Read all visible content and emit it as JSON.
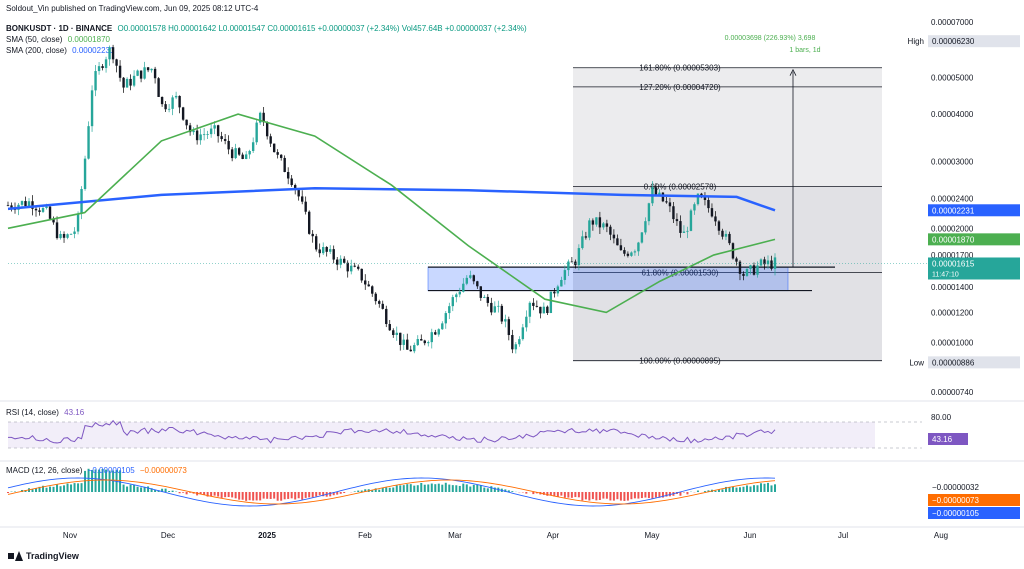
{
  "header": {
    "published": "Soldout_Vin published on TradingView.com, Jun 09, 2025 08:12 UTC-4"
  },
  "legend": {
    "symbol": "BONKUSDT · 1D · BINANCE",
    "ohlc": "O0.00001578 H0.00001642 L0.00001547 C0.00001615 +0.00000037 (+2.34%) Vol457.64B +0.00000037 (+2.34%)",
    "sma50_label": "SMA (50, close)",
    "sma50_value": "0.00001870",
    "sma200_label": "SMA (200, close)",
    "sma200_value": "0.00002231",
    "rsi_label": "RSI (14, close)",
    "rsi_value": "43.16",
    "macd_label": "MACD (12, 26, close)",
    "macd_v1": "−0.00000105",
    "macd_v2": "−0.00000073"
  },
  "footer": {
    "brand": "TradingView"
  },
  "colors": {
    "up": "#26a69a",
    "down": "#000000",
    "sma50": "#4caf50",
    "sma200": "#2962ff",
    "rsi": "#7e57c2",
    "macd": "#2962ff",
    "signal": "#ff6d00",
    "zone": "#2962ff"
  },
  "chart_data": {
    "type": "candlestick",
    "x_labels": [
      "Nov",
      "Dec",
      "2025",
      "Feb",
      "Mar",
      "Apr",
      "May",
      "Jun",
      "Jul",
      "Aug"
    ],
    "y_scale": "log",
    "y_ticks": [
      "0.00007000",
      "0.00005000",
      "0.00004000",
      "0.00003000",
      "0.00002400",
      "0.00002000",
      "0.00001700",
      "0.00001400",
      "0.00001200",
      "0.00001000",
      "0.00000740"
    ],
    "y_range": [
      6.8e-06,
      7.2e-06
    ],
    "price_badges": [
      {
        "label": "High",
        "value": "0.00006230",
        "color": "#131722",
        "bg": "#e0e3eb"
      },
      {
        "label": "",
        "value": "0.00002231",
        "color": "#ffffff",
        "bg": "#2962ff"
      },
      {
        "label": "",
        "value": "0.00001870",
        "color": "#ffffff",
        "bg": "#4caf50"
      },
      {
        "label": "",
        "value": "0.00001615",
        "color": "#ffffff",
        "bg": "#26a69a",
        "sub": "11:47:10"
      },
      {
        "label": "Low",
        "value": "0.00000886",
        "color": "#131722",
        "bg": "#e0e3eb"
      }
    ],
    "fibonacci": [
      {
        "label": "161.80% (0.00005303)",
        "price": 5.303e-05
      },
      {
        "label": "127.20% (0.00004720)",
        "price": 4.72e-05
      },
      {
        "label": "0.00% (0.00002578)",
        "price": 2.578e-05
      },
      {
        "label": "61.80% (0.00001530)",
        "price": 1.53e-05
      },
      {
        "label": "100.00% (0.00000895)",
        "price": 8.95e-06
      }
    ],
    "measure_label": "0.00003698 (226.93%) 3,698",
    "measure_sub": "1 bars, 1d",
    "support_zone": [
      1.37e-05,
      1.58e-05
    ],
    "rsi_ticks": [
      "80.00"
    ],
    "rsi_badge": "43.16",
    "macd_badges": [
      "−0.00000032",
      "−0.00000073",
      "−0.00000105"
    ],
    "price_path": [
      [
        0.0,
        2.3e-05
      ],
      [
        0.03,
        2.35e-05
      ],
      [
        0.05,
        2.2e-05
      ],
      [
        0.07,
        1.85e-05
      ],
      [
        0.09,
        2e-05
      ],
      [
        0.1,
        3e-05
      ],
      [
        0.11,
        4.8e-05
      ],
      [
        0.125,
        5.6e-05
      ],
      [
        0.135,
        6e-05
      ],
      [
        0.15,
        4.7e-05
      ],
      [
        0.17,
        5.1e-05
      ],
      [
        0.19,
        5.3e-05
      ],
      [
        0.2,
        4.2e-05
      ],
      [
        0.22,
        4.4e-05
      ],
      [
        0.24,
        3.5e-05
      ],
      [
        0.27,
        3.6e-05
      ],
      [
        0.29,
        3.2e-05
      ],
      [
        0.31,
        3e-05
      ],
      [
        0.33,
        4e-05
      ],
      [
        0.35,
        3.1e-05
      ],
      [
        0.37,
        2.7e-05
      ],
      [
        0.38,
        2.4e-05
      ],
      [
        0.4,
        1.8e-05
      ],
      [
        0.42,
        1.7e-05
      ],
      [
        0.44,
        1.6e-05
      ],
      [
        0.46,
        1.5e-05
      ],
      [
        0.48,
        1.3e-05
      ],
      [
        0.5,
        1.1e-05
      ],
      [
        0.52,
        9.5e-06
      ],
      [
        0.54,
        1e-05
      ],
      [
        0.56,
        1.1e-05
      ],
      [
        0.58,
        1.3e-05
      ],
      [
        0.6,
        1.5e-05
      ],
      [
        0.62,
        1.3e-05
      ],
      [
        0.64,
        1.2e-05
      ],
      [
        0.65,
        1.1e-05
      ],
      [
        0.66,
        9.5e-06
      ],
      [
        0.68,
        1.3e-05
      ],
      [
        0.7,
        1.2e-05
      ],
      [
        0.72,
        1.5e-05
      ],
      [
        0.74,
        1.65e-05
      ],
      [
        0.76,
        2.1e-05
      ],
      [
        0.78,
        2e-05
      ],
      [
        0.8,
        1.7e-05
      ],
      [
        0.82,
        1.8e-05
      ],
      [
        0.84,
        2.5e-05
      ],
      [
        0.86,
        2.3e-05
      ],
      [
        0.88,
        1.9e-05
      ],
      [
        0.9,
        2.4e-05
      ],
      [
        0.92,
        2.2e-05
      ],
      [
        0.94,
        1.8e-05
      ],
      [
        0.96,
        1.5e-05
      ],
      [
        0.98,
        1.6e-05
      ],
      [
        1.0,
        1.62e-05
      ]
    ],
    "sma50_path": [
      [
        0.0,
        2e-05
      ],
      [
        0.1,
        2.2e-05
      ],
      [
        0.2,
        3.4e-05
      ],
      [
        0.3,
        4e-05
      ],
      [
        0.4,
        3.5e-05
      ],
      [
        0.5,
        2.6e-05
      ],
      [
        0.6,
        1.8e-05
      ],
      [
        0.7,
        1.3e-05
      ],
      [
        0.78,
        1.2e-05
      ],
      [
        0.85,
        1.45e-05
      ],
      [
        0.92,
        1.7e-05
      ],
      [
        1.0,
        1.87e-05
      ]
    ],
    "sma200_path": [
      [
        0.0,
        2.25e-05
      ],
      [
        0.2,
        2.45e-05
      ],
      [
        0.4,
        2.55e-05
      ],
      [
        0.6,
        2.52e-05
      ],
      [
        0.8,
        2.45e-05
      ],
      [
        0.95,
        2.42e-05
      ],
      [
        1.0,
        2.23e-05
      ]
    ]
  }
}
